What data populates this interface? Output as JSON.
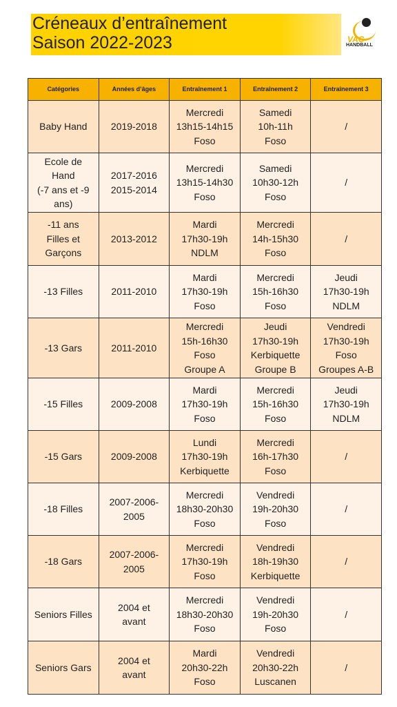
{
  "header": {
    "title_lines": [
      "Créneaux d’entraînement",
      "Saison 2022-2023"
    ],
    "logo": {
      "name": "VAC",
      "sub": "HANDBALL"
    }
  },
  "table": {
    "columns": [
      "Catégories",
      "Années d’âges",
      "Entraînement 1",
      "Entraînement 2",
      "Entraînement 3"
    ],
    "rows": [
      [
        [
          "Baby Hand"
        ],
        [
          "2019-2018"
        ],
        [
          "Mercredi",
          "13h15-14h15",
          "Foso"
        ],
        [
          "Samedi",
          "10h-11h",
          "Foso"
        ],
        [
          "/"
        ]
      ],
      [
        [
          "Ecole de",
          "Hand",
          "(-7 ans et -9",
          "ans)"
        ],
        [
          "2017-2016",
          "2015-2014"
        ],
        [
          "Mercredi",
          "13h15-14h30",
          "Foso"
        ],
        [
          "Samedi",
          "10h30-12h",
          "Foso"
        ],
        [
          "/"
        ]
      ],
      [
        [
          "-11 ans",
          "Filles et",
          "Garçons"
        ],
        [
          "2013-2012"
        ],
        [
          "Mardi",
          "17h30-19h",
          "NDLM"
        ],
        [
          "Mercredi",
          "14h-15h30",
          "Foso"
        ],
        [
          "/"
        ]
      ],
      [
        [
          "-13 Filles"
        ],
        [
          "2011-2010"
        ],
        [
          "Mardi",
          "17h30-19h",
          "Foso"
        ],
        [
          "Mercredi",
          "15h-16h30",
          "Foso"
        ],
        [
          "Jeudi",
          "17h30-19h",
          "NDLM"
        ]
      ],
      [
        [
          "-13 Gars"
        ],
        [
          "2011-2010"
        ],
        [
          "Mercredi",
          "15h-16h30",
          "Foso",
          "Groupe A"
        ],
        [
          "Jeudi",
          "17h30-19h",
          "Kerbiquette",
          "Groupe B"
        ],
        [
          "Vendredi",
          "17h30-19h",
          "Foso",
          "Groupes A-B"
        ]
      ],
      [
        [
          "-15 Filles"
        ],
        [
          "2009-2008"
        ],
        [
          "Mardi",
          "17h30-19h",
          "Foso"
        ],
        [
          "Mercredi",
          "15h-16h30",
          "Foso"
        ],
        [
          "Jeudi",
          "17h30-19h",
          "NDLM"
        ]
      ],
      [
        [
          "-15 Gars"
        ],
        [
          "2009-2008"
        ],
        [
          "Lundi",
          "17h30-19h",
          "Kerbiquette"
        ],
        [
          "Mercredi",
          "16h-17h30",
          "Foso"
        ],
        [
          "/"
        ]
      ],
      [
        [
          "-18 Filles"
        ],
        [
          "2007-2006-",
          "2005"
        ],
        [
          "Mercredi",
          "18h30-20h30",
          "Foso"
        ],
        [
          "Vendredi",
          "19h-20h30",
          "Foso"
        ],
        [
          "/"
        ]
      ],
      [
        [
          "-18 Gars"
        ],
        [
          "2007-2006-",
          "2005"
        ],
        [
          "Mercredi",
          "17h30-19h",
          "Foso"
        ],
        [
          "Vendredi",
          "18h-19h30",
          "Kerbiquette"
        ],
        [
          "/"
        ]
      ],
      [
        [
          "Seniors Filles"
        ],
        [
          "2004 et",
          "avant"
        ],
        [
          "Mercredi",
          "18h30-20h30",
          "Foso"
        ],
        [
          "Vendredi",
          "19h-20h30",
          "Foso"
        ],
        [
          "/"
        ]
      ],
      [
        [
          "Seniors Gars"
        ],
        [
          "2004 et",
          "avant"
        ],
        [
          "Mardi",
          "20h30-22h",
          "Foso"
        ],
        [
          "Vendredi",
          "20h30-22h",
          "Luscanen"
        ],
        [
          "/"
        ]
      ]
    ]
  }
}
